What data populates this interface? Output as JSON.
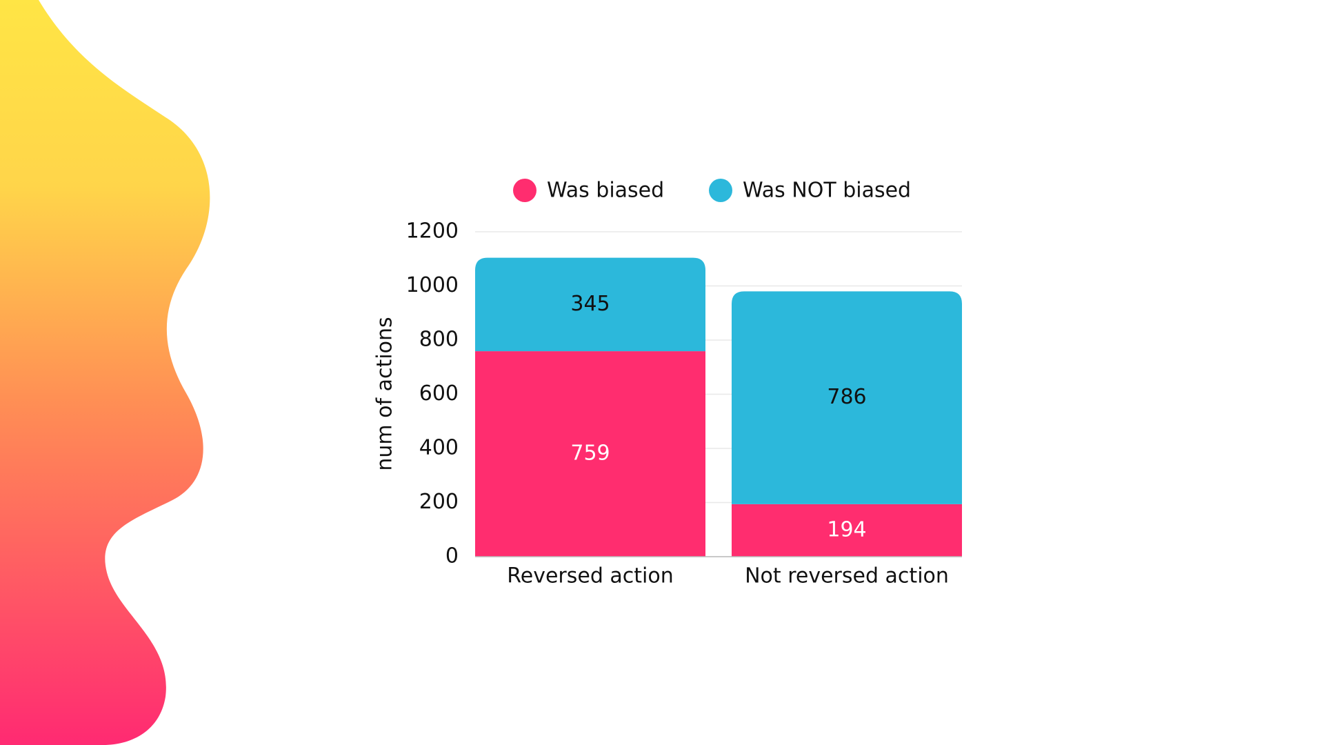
{
  "chart_data": {
    "type": "stacked_bar",
    "categories": [
      "Reversed action",
      "Not reversed action"
    ],
    "series": [
      {
        "name": "Was biased",
        "color": "#ff2d6f",
        "label_color": "#ffffff",
        "values": [
          759,
          194
        ]
      },
      {
        "name": "Was NOT biased",
        "color": "#2cb8db",
        "label_color": "#111111",
        "values": [
          345,
          786
        ]
      }
    ],
    "y_label": "num of actions",
    "ylim": [
      0,
      1200
    ],
    "yticks": [
      0,
      200,
      400,
      600,
      800,
      1000,
      1200
    ],
    "grid": true
  }
}
